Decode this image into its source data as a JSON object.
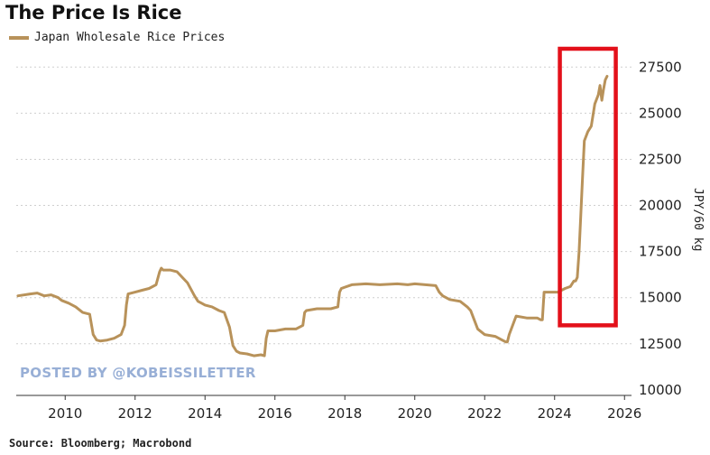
{
  "title": "The Price Is Rice",
  "legend": {
    "label": "Japan Wholesale Rice Prices"
  },
  "watermark": "POSTED BY @KOBEISSILETTER",
  "source": "Source: Bloomberg; Macrobond",
  "colors": {
    "series": "#b8925a",
    "highlight": "#e3101a",
    "grid": "#cfcfcf"
  },
  "chart_data": {
    "type": "line",
    "title": "The Price Is Rice",
    "xlabel": "",
    "ylabel": "JPY/60 kg",
    "xlim": [
      2008.6,
      2026.2
    ],
    "ylim": [
      9700,
      28200
    ],
    "xticks": [
      2010,
      2012,
      2014,
      2016,
      2018,
      2020,
      2022,
      2024,
      2026
    ],
    "yticks": [
      10000,
      12500,
      15000,
      17500,
      20000,
      22500,
      25000,
      27500
    ],
    "grid": "horizontal dotted",
    "legend_position": "top-left",
    "annotations": [
      {
        "type": "highlight-box",
        "x_range": [
          2024.15,
          2025.75
        ],
        "y_range": [
          13500,
          28700
        ]
      }
    ],
    "series": [
      {
        "name": "Japan Wholesale Rice Prices",
        "x": [
          2008.65,
          2009.0,
          2009.2,
          2009.4,
          2009.6,
          2009.8,
          2009.9,
          2010.1,
          2010.3,
          2010.5,
          2010.7,
          2010.8,
          2010.9,
          2011.0,
          2011.2,
          2011.4,
          2011.6,
          2011.7,
          2011.75,
          2011.8,
          2012.0,
          2012.2,
          2012.4,
          2012.6,
          2012.7,
          2012.75,
          2012.8,
          2013.0,
          2013.2,
          2013.5,
          2013.7,
          2013.8,
          2013.9,
          2014.0,
          2014.2,
          2014.4,
          2014.55,
          2014.7,
          2014.8,
          2014.9,
          2015.0,
          2015.2,
          2015.4,
          2015.6,
          2015.7,
          2015.75,
          2015.8,
          2016.0,
          2016.3,
          2016.6,
          2016.8,
          2016.85,
          2016.9,
          2017.2,
          2017.6,
          2017.8,
          2017.85,
          2017.9,
          2018.2,
          2018.6,
          2019.0,
          2019.5,
          2019.8,
          2020.0,
          2020.3,
          2020.6,
          2020.7,
          2020.8,
          2021.0,
          2021.3,
          2021.5,
          2021.6,
          2021.7,
          2021.8,
          2022.0,
          2022.3,
          2022.5,
          2022.6,
          2022.65,
          2022.7,
          2022.9,
          2023.2,
          2023.5,
          2023.6,
          2023.65,
          2023.7,
          2023.9,
          2024.1,
          2024.3,
          2024.45,
          2024.55,
          2024.6,
          2024.65,
          2024.7,
          2024.75,
          2024.8,
          2024.85,
          2024.95,
          2025.05,
          2025.15,
          2025.25,
          2025.3,
          2025.35,
          2025.4,
          2025.45,
          2025.5
        ],
        "values": [
          15100,
          15200,
          15250,
          15100,
          15150,
          15000,
          14850,
          14700,
          14500,
          14200,
          14100,
          13000,
          12700,
          12650,
          12700,
          12800,
          13000,
          13500,
          14600,
          15200,
          15300,
          15400,
          15500,
          15700,
          16400,
          16600,
          16500,
          16500,
          16400,
          15800,
          15100,
          14800,
          14700,
          14600,
          14500,
          14300,
          14200,
          13400,
          12400,
          12100,
          12000,
          11950,
          11850,
          11900,
          11850,
          12800,
          13200,
          13200,
          13300,
          13300,
          13500,
          14200,
          14300,
          14400,
          14400,
          14500,
          15300,
          15500,
          15700,
          15750,
          15700,
          15750,
          15700,
          15750,
          15700,
          15650,
          15300,
          15100,
          14900,
          14800,
          14500,
          14300,
          13800,
          13300,
          13000,
          12900,
          12700,
          12600,
          12600,
          13000,
          14000,
          13900,
          13900,
          13800,
          13800,
          15300,
          15300,
          15300,
          15500,
          15600,
          15900,
          15900,
          16100,
          17500,
          19500,
          21500,
          23500,
          24000,
          24300,
          25500,
          26000,
          26500,
          25700,
          26300,
          26800,
          27000
        ]
      }
    ]
  }
}
